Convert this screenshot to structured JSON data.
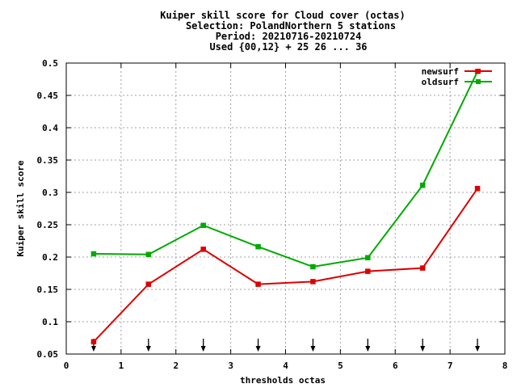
{
  "chart_data": {
    "type": "line",
    "title_lines": [
      "Kuiper skill score  for Cloud cover (octas)",
      "Selection: PolandNorthern      5 stations",
      "Period: 20210716-20210724",
      "Used {00,12} + 25 26 ... 36"
    ],
    "xlabel": "thresholds octas",
    "ylabel": "Kuiper skill score",
    "xlim": [
      0,
      8
    ],
    "ylim": [
      0.05,
      0.5
    ],
    "xticks": [
      0,
      1,
      2,
      3,
      4,
      5,
      6,
      7,
      8
    ],
    "xtick_labels": [
      "0",
      "1",
      "2",
      "3",
      "4",
      "5",
      "6",
      "7",
      "8"
    ],
    "yticks": [
      0.05,
      0.1,
      0.15,
      0.2,
      0.25,
      0.3,
      0.35,
      0.4,
      0.45,
      0.5
    ],
    "ytick_labels": [
      "0.05",
      "0.1",
      "0.15",
      "0.2",
      "0.25",
      "0.3",
      "0.35",
      "0.4",
      "0.45",
      "0.5"
    ],
    "grid": true,
    "legend_position": "top-right",
    "x": [
      0.5,
      1.5,
      2.5,
      3.5,
      4.5,
      5.5,
      6.5,
      7.5
    ],
    "series": [
      {
        "name": "newsurf",
        "color": "#dd0000",
        "values": [
          0.069,
          0.158,
          0.212,
          0.158,
          0.162,
          0.178,
          0.183,
          0.306
        ]
      },
      {
        "name": "oldsurf",
        "color": "#00aa00",
        "values": [
          0.205,
          0.204,
          0.249,
          0.216,
          0.185,
          0.199,
          0.311,
          0.487
        ]
      }
    ],
    "threshold_arrows_x": [
      0.5,
      1.5,
      2.5,
      3.5,
      4.5,
      5.5,
      6.5,
      7.5
    ]
  }
}
